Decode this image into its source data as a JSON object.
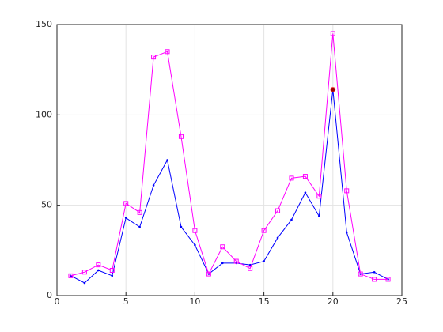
{
  "chart_data": {
    "type": "line",
    "x": [
      1,
      2,
      3,
      4,
      5,
      6,
      7,
      8,
      9,
      10,
      11,
      12,
      13,
      14,
      15,
      16,
      17,
      18,
      19,
      20,
      21,
      22,
      23,
      24
    ],
    "series": [
      {
        "color": "#0000ff",
        "marker": "dot",
        "values": [
          11,
          7,
          14,
          11,
          43,
          38,
          61,
          75,
          38,
          28,
          12,
          18,
          18,
          17,
          19,
          32,
          42,
          57,
          44,
          114,
          35,
          12,
          13,
          9
        ]
      },
      {
        "color": "#ff00ff",
        "marker": "square",
        "values": [
          11,
          13,
          17,
          14,
          51,
          46,
          132,
          135,
          88,
          36,
          12,
          27,
          19,
          15,
          36,
          47,
          65,
          66,
          55,
          145,
          58,
          12,
          9,
          9
        ]
      }
    ],
    "highlight": {
      "x": 20,
      "y": 114,
      "color": "#a00000"
    },
    "xlim": [
      0,
      25
    ],
    "ylim": [
      0,
      150
    ],
    "xticks": [
      0,
      5,
      10,
      15,
      20,
      25
    ],
    "yticks": [
      0,
      50,
      100,
      150
    ],
    "grid": true
  }
}
